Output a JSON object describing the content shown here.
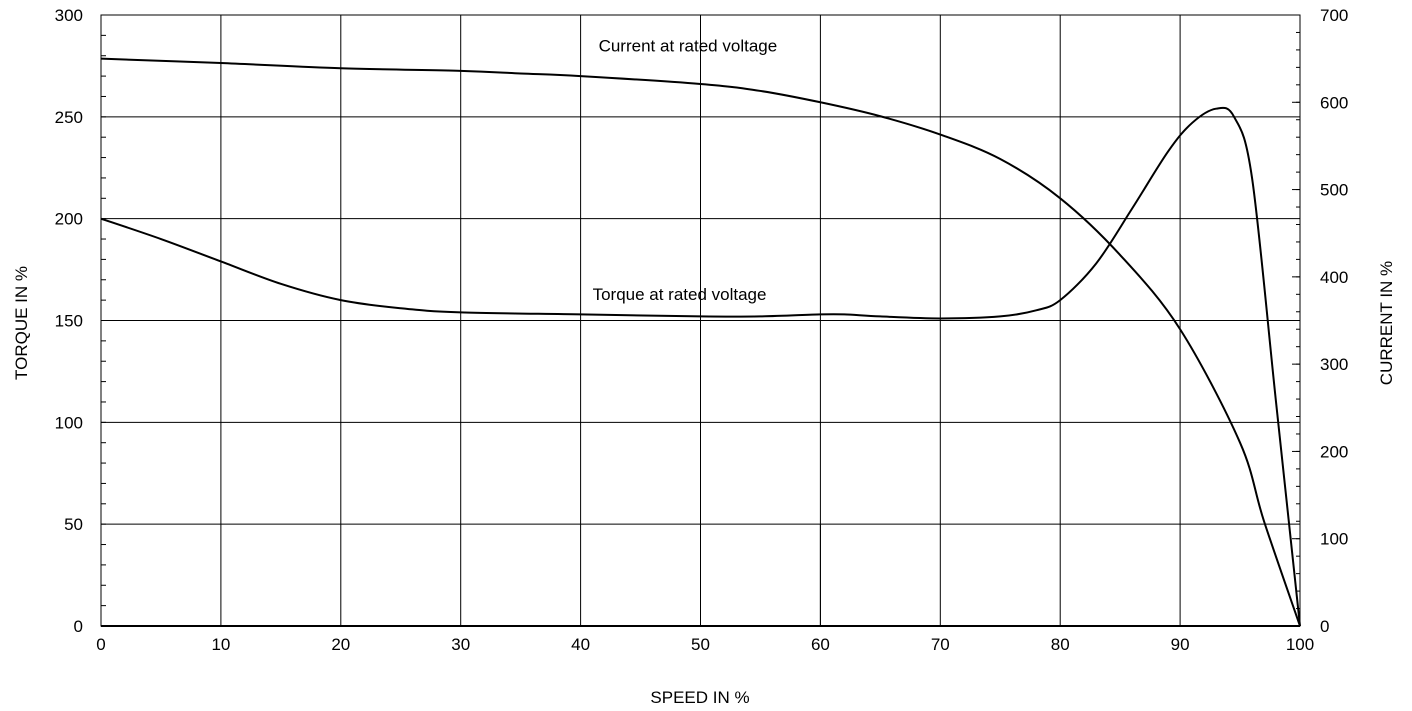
{
  "chart_data": {
    "type": "line",
    "xlabel": "SPEED IN %",
    "ylabel": "TORQUE IN %",
    "y2label": "CURRENT IN %",
    "xlim": [
      0,
      100
    ],
    "ylim": [
      0,
      300
    ],
    "y2lim": [
      0,
      700
    ],
    "x_ticks": [
      "0",
      "10",
      "20",
      "30",
      "40",
      "50",
      "60",
      "70",
      "80",
      "90",
      "100"
    ],
    "y_ticks": [
      "0",
      "50",
      "100",
      "150",
      "200",
      "250",
      "300"
    ],
    "y2_ticks": [
      "0",
      "100",
      "200",
      "300",
      "400",
      "500",
      "600",
      "700"
    ],
    "grid": true,
    "series": [
      {
        "name": "Current at rated voltage",
        "axis": "y2",
        "x": [
          0,
          10,
          20,
          30,
          35,
          40,
          50,
          55,
          60,
          65,
          70,
          75,
          80,
          85,
          90,
          95,
          97,
          100
        ],
        "values": [
          650,
          645,
          639,
          636,
          633,
          630,
          621,
          613,
          600,
          584,
          563,
          535,
          490,
          425,
          340,
          210,
          120,
          0
        ]
      },
      {
        "name": "Torque at rated voltage",
        "axis": "y",
        "x": [
          0,
          5,
          10,
          15,
          20,
          25,
          30,
          40,
          50,
          55,
          60,
          62,
          65,
          70,
          75,
          78,
          80,
          83,
          86,
          89,
          91,
          93,
          94.5,
          96,
          98,
          100
        ],
        "values": [
          200,
          190,
          179,
          168,
          160,
          156,
          154,
          153,
          152,
          152,
          153,
          153,
          152,
          151,
          152,
          155,
          160,
          178,
          205,
          233,
          247,
          254,
          250,
          220,
          110,
          0
        ]
      },
      {
        "name": "",
        "axis": "y",
        "color": "#2020c0",
        "x": [
          0,
          100
        ],
        "values": [
          0,
          0
        ]
      }
    ],
    "annotations": [
      {
        "text": "Current at rated voltage",
        "x": 41.5,
        "y": 282
      },
      {
        "text": "Torque at rated voltage",
        "x": 41,
        "y": 160
      }
    ],
    "markers": [
      {
        "x": 50,
        "y_from": 0,
        "y_to": 50
      },
      {
        "x": 60,
        "y_from": 0,
        "y_to": 50
      }
    ]
  }
}
